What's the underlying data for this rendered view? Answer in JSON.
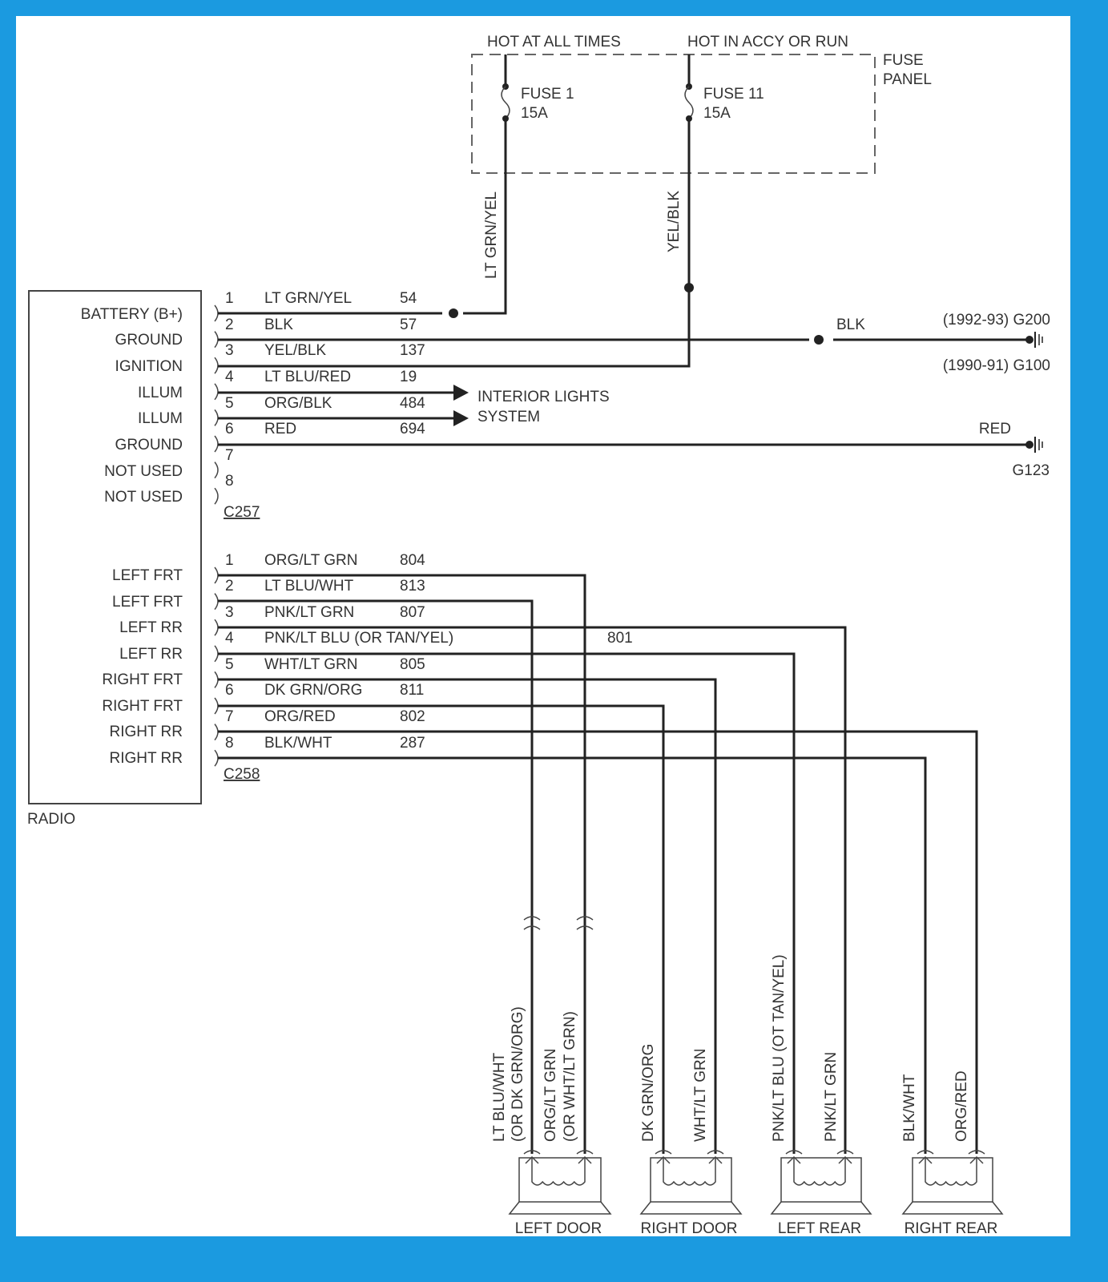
{
  "fuse_panel": {
    "label_line1": "FUSE",
    "label_line2": "PANEL",
    "hot_at_all_times": "HOT AT ALL TIMES",
    "hot_in_accy": "HOT IN ACCY OR RUN",
    "fuse1": {
      "name": "FUSE 1",
      "rating": "15A",
      "wire": "LT GRN/YEL"
    },
    "fuse11": {
      "name": "FUSE 11",
      "rating": "15A",
      "wire": "YEL/BLK"
    }
  },
  "radio": {
    "label": "RADIO",
    "pins_c257": [
      "BATTERY (B+)",
      "GROUND",
      "IGNITION",
      "ILLUM",
      "ILLUM",
      "GROUND",
      "NOT USED",
      "NOT USED"
    ],
    "pins_c258": [
      "LEFT FRT",
      "LEFT FRT",
      "LEFT RR",
      "LEFT RR",
      "RIGHT FRT",
      "RIGHT FRT",
      "RIGHT RR",
      "RIGHT RR"
    ]
  },
  "c257": {
    "label": "C257",
    "wires": [
      {
        "pin": "1",
        "color": "LT GRN/YEL",
        "circuit": "54"
      },
      {
        "pin": "2",
        "color": "BLK",
        "circuit": "57"
      },
      {
        "pin": "3",
        "color": "YEL/BLK",
        "circuit": "137"
      },
      {
        "pin": "4",
        "color": "LT BLU/RED",
        "circuit": "19"
      },
      {
        "pin": "5",
        "color": "ORG/BLK",
        "circuit": "484"
      },
      {
        "pin": "6",
        "color": "RED",
        "circuit": "694"
      },
      {
        "pin": "7"
      },
      {
        "pin": "8"
      }
    ],
    "interior_lights_1": "INTERIOR LIGHTS",
    "interior_lights_2": "SYSTEM",
    "blk_label": "BLK",
    "ground_g200": "(1992-93) G200",
    "ground_g100": "(1990-91) G100",
    "red_label": "RED",
    "ground_g123": "G123"
  },
  "c258": {
    "label": "C258",
    "wires": [
      {
        "pin": "1",
        "color": "ORG/LT GRN",
        "circuit": "804"
      },
      {
        "pin": "2",
        "color": "LT BLU/WHT",
        "circuit": "813"
      },
      {
        "pin": "3",
        "color": "PNK/LT GRN",
        "circuit": "807"
      },
      {
        "pin": "4",
        "color": "PNK/LT BLU (OR TAN/YEL)",
        "circuit": "801"
      },
      {
        "pin": "5",
        "color": "WHT/LT GRN",
        "circuit": "805"
      },
      {
        "pin": "6",
        "color": "DK GRN/ORG",
        "circuit": "811"
      },
      {
        "pin": "7",
        "color": "ORG/RED",
        "circuit": "802"
      },
      {
        "pin": "8",
        "color": "BLK/WHT",
        "circuit": "287"
      }
    ]
  },
  "speakers": [
    {
      "name": "LEFT DOOR",
      "wire_a": "LT BLU/WHT",
      "wire_a2": "(OR DK GRN/ORG)",
      "wire_b": "ORG/LT GRN",
      "wire_b2": "(OR WHT/LT GRN)"
    },
    {
      "name": "RIGHT DOOR",
      "wire_a": "DK GRN/ORG",
      "wire_b": "WHT/LT GRN"
    },
    {
      "name": "LEFT REAR",
      "wire_a": "PNK/LT BLU (OT TAN/YEL)",
      "wire_b": "PNK/LT GRN"
    },
    {
      "name": "RIGHT REAR",
      "wire_a": "BLK/WHT",
      "wire_b": "ORG/RED"
    }
  ],
  "colors": {
    "frame": "#1b9ae0",
    "wire": "#222222",
    "text": "#333333"
  }
}
